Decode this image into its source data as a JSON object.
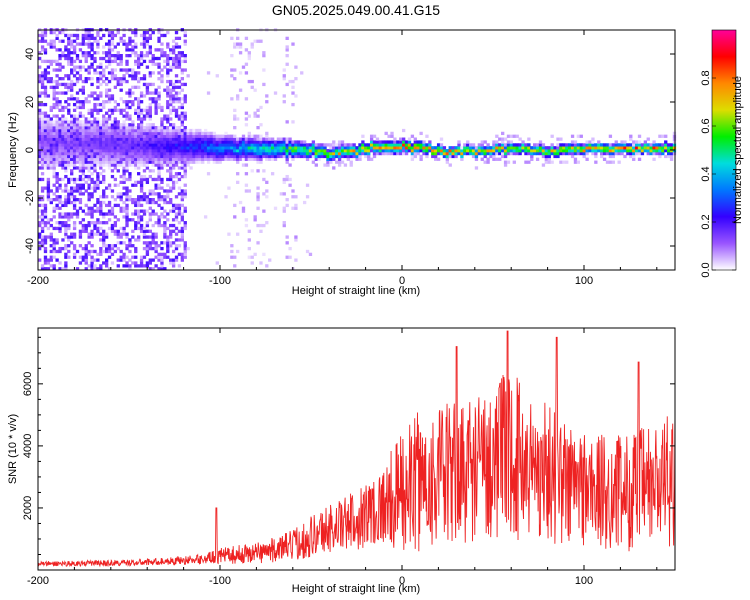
{
  "figure": {
    "title": "GN05.2025.049.00.41.G15"
  },
  "chart_data": [
    {
      "type": "heatmap",
      "xlabel": "Height of straight line (km)",
      "ylabel": "Frequency (Hz)",
      "xlim": [
        -200,
        150
      ],
      "ylim": [
        -50,
        50
      ],
      "xticks": [
        -200,
        -100,
        0,
        100
      ],
      "yticks": [
        -40,
        -20,
        0,
        20,
        40
      ],
      "colorbar": {
        "label": "Normalized spectral amplitude",
        "range": [
          0.0,
          1.0
        ],
        "ticks": [
          "0.0",
          "0.2",
          "0.4",
          "0.6",
          "0.8"
        ],
        "colors": [
          "#ffffff",
          "#9955ff",
          "#3300ff",
          "#0077ff",
          "#00dddd",
          "#00ee00",
          "#dddd00",
          "#ff8800",
          "#ff0000",
          "#ff0099"
        ]
      },
      "ridge": {
        "description_free": true,
        "x": [
          -200,
          -150,
          -120,
          -100,
          -80,
          -60,
          -40,
          -20,
          0,
          20,
          40,
          60,
          80,
          100,
          120,
          150
        ],
        "center_hz": [
          3,
          2,
          1,
          0,
          0,
          0,
          -2,
          0,
          1,
          -1,
          -1,
          0,
          -1,
          0,
          0,
          0
        ],
        "halfwidth_hz": [
          12,
          10,
          8,
          6,
          5,
          4,
          3,
          3,
          3,
          2.5,
          2.5,
          2.5,
          2.5,
          2.5,
          2.5,
          2.5
        ],
        "peak_amplitude": [
          0.15,
          0.2,
          0.3,
          0.42,
          0.55,
          0.7,
          0.8,
          0.85,
          0.9,
          0.9,
          0.85,
          0.82,
          0.85,
          0.9,
          0.92,
          0.95
        ]
      },
      "noise_region_x": [
        -200,
        -120
      ]
    },
    {
      "type": "line",
      "xlabel": "Height of straight line (km)",
      "ylabel": "SNR (10 * v/v)",
      "xlim": [
        -200,
        150
      ],
      "ylim": [
        0,
        7800
      ],
      "xticks": [
        -200,
        -100,
        0,
        100
      ],
      "yticks": [
        2000,
        4000,
        6000
      ],
      "color": "#ee2222",
      "envelope": {
        "x": [
          -200,
          -150,
          -130,
          -110,
          -100,
          -90,
          -80,
          -70,
          -60,
          -50,
          -40,
          -30,
          -20,
          -10,
          0,
          10,
          20,
          30,
          40,
          50,
          60,
          70,
          80,
          90,
          100,
          110,
          120,
          130,
          140,
          150
        ],
        "mean": [
          200,
          230,
          280,
          350,
          450,
          500,
          560,
          650,
          800,
          1100,
          1350,
          1500,
          1800,
          2100,
          2500,
          2900,
          3000,
          3100,
          3300,
          3500,
          3800,
          3300,
          3200,
          2800,
          2700,
          2500,
          2500,
          2600,
          2700,
          3000
        ],
        "amp": [
          80,
          100,
          120,
          150,
          250,
          300,
          350,
          400,
          500,
          700,
          800,
          900,
          1100,
          1300,
          2000,
          2300,
          2300,
          2400,
          2400,
          2500,
          2800,
          2400,
          2300,
          2100,
          2000,
          1900,
          1900,
          2000,
          2100,
          2200
        ]
      },
      "peaks": [
        {
          "x": 58,
          "y": 7700
        },
        {
          "x": 85,
          "y": 7500
        },
        {
          "x": 30,
          "y": 7200
        },
        {
          "x": 130,
          "y": 6700
        },
        {
          "x": -102,
          "y": 2000
        }
      ]
    }
  ]
}
